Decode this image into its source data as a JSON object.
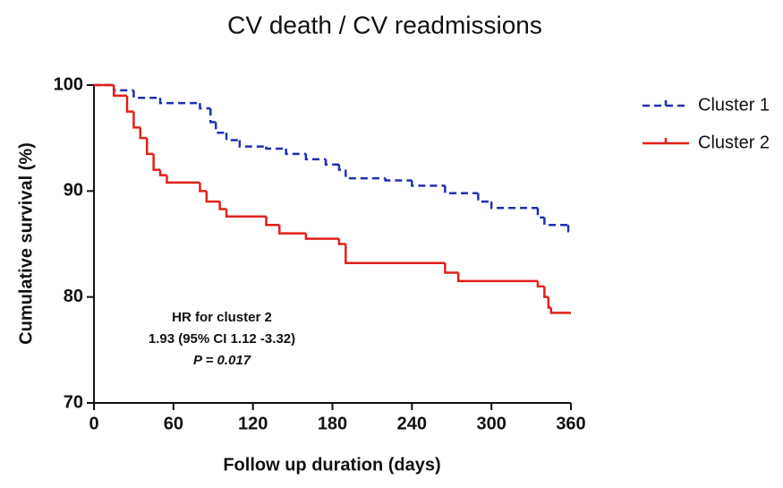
{
  "chart_data": {
    "type": "line",
    "drawstyle": "steps-post",
    "title": "CV death / CV readmissions",
    "xlabel": "Follow up duration (days)",
    "ylabel": "Cumulative survival (%)",
    "xlim": [
      0,
      360
    ],
    "xticks": [
      0,
      60,
      120,
      180,
      240,
      300,
      360
    ],
    "ylim": [
      70,
      100
    ],
    "yticks": [
      70,
      80,
      90,
      100
    ],
    "legend": "right",
    "annotation": [
      "HR for cluster 2",
      "1.93 (95% CI 1.12 -3.32)",
      "P = 0.017"
    ],
    "series": [
      {
        "name": "Cluster 1",
        "color": "#1f2fb5",
        "linestyle": "dashed",
        "x": [
          0,
          15,
          30,
          50,
          80,
          88,
          92,
          100,
          110,
          130,
          145,
          160,
          175,
          185,
          190,
          220,
          240,
          265,
          290,
          300,
          335,
          340,
          358,
          360
        ],
        "values": [
          100,
          99.5,
          98.8,
          98.3,
          97.8,
          96.5,
          95.5,
          94.8,
          94.2,
          94,
          93.5,
          93,
          92.5,
          92,
          91.2,
          91,
          90.5,
          89.8,
          89,
          88.4,
          87.5,
          86.8,
          86.2,
          86.2
        ]
      },
      {
        "name": "Cluster 2",
        "color": "#e0201b",
        "linestyle": "solid",
        "x": [
          0,
          15,
          25,
          30,
          35,
          40,
          45,
          50,
          55,
          80,
          85,
          95,
          100,
          130,
          140,
          160,
          185,
          190,
          265,
          275,
          335,
          340,
          343,
          345,
          360
        ],
        "values": [
          100,
          99,
          97.5,
          96,
          95,
          93.5,
          92,
          91.5,
          90.8,
          90,
          89,
          88.3,
          87.6,
          86.8,
          86,
          85.5,
          85,
          83.2,
          82.3,
          81.5,
          81,
          80,
          79,
          78.5,
          78.5
        ]
      }
    ]
  }
}
